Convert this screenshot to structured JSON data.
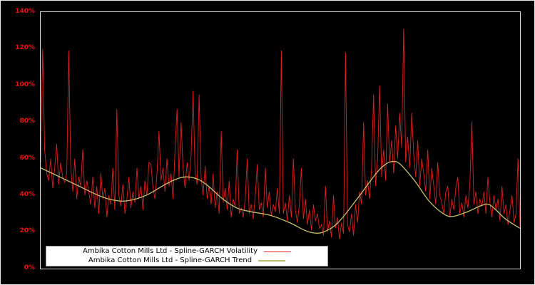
{
  "figure": {
    "background": "#000000",
    "plot_border_color": "#dcdcdc"
  },
  "colors": {
    "volatility": "#e01f1f",
    "trend": "#bdb76b",
    "axis_label": "#ee1111",
    "legend_bg": "#ffffff",
    "legend_text": "#000000"
  },
  "axis": {
    "y_ticks": [
      "0%",
      "20%",
      "40%",
      "60%",
      "80%",
      "100%",
      "120%",
      "140%"
    ],
    "y_min": 0,
    "y_max": 140,
    "y_unit": "%"
  },
  "legend": {
    "items": [
      {
        "label": "Ambika Cotton Mills Ltd - Spline-GARCH Volatility",
        "color": "#e01f1f"
      },
      {
        "label": "Ambika Cotton Mills Ltd - Spline-GARCH Trend",
        "color": "#bdb76b"
      }
    ]
  },
  "chart_data": {
    "type": "line",
    "title": "",
    "xlabel": "",
    "ylabel": "",
    "ylim": [
      0,
      140
    ],
    "y_unit": "percent",
    "grid": false,
    "legend_position": "bottom-left",
    "series": [
      {
        "name": "Ambika Cotton Mills Ltd - Spline-GARCH Volatility",
        "color": "#e01f1f",
        "style": "noisy-line",
        "values": [
          58,
          120,
          65,
          52,
          48,
          60,
          44,
          55,
          68,
          46,
          58,
          50,
          47,
          52,
          119,
          55,
          42,
          60,
          38,
          50,
          45,
          65,
          40,
          48,
          42,
          35,
          50,
          33,
          45,
          30,
          52,
          38,
          44,
          28,
          40,
          35,
          55,
          32,
          87,
          40,
          34,
          46,
          30,
          38,
          50,
          33,
          42,
          36,
          55,
          38,
          45,
          32,
          48,
          40,
          58,
          57,
          44,
          38,
          52,
          75,
          48,
          55,
          42,
          60,
          45,
          52,
          38,
          65,
          87,
          50,
          80,
          55,
          44,
          58,
          48,
          62,
          97,
          52,
          46,
          95,
          50,
          40,
          56,
          38,
          45,
          35,
          52,
          33,
          42,
          30,
          75,
          36,
          44,
          32,
          48,
          28,
          38,
          34,
          65,
          30,
          33,
          28,
          38,
          60,
          30,
          35,
          27,
          40,
          57,
          32,
          36,
          28,
          55,
          33,
          42,
          29,
          35,
          31,
          44,
          30,
          119,
          30,
          36,
          26,
          40,
          28,
          60,
          32,
          25,
          35,
          55,
          27,
          38,
          24,
          32,
          21,
          35,
          26,
          30,
          22,
          24,
          18,
          45,
          20,
          26,
          17,
          40,
          22,
          28,
          16,
          25,
          19,
          118,
          24,
          20,
          30,
          18,
          35,
          25,
          42,
          35,
          80,
          40,
          48,
          38,
          55,
          95,
          45,
          60,
          100,
          50,
          65,
          48,
          90,
          58,
          70,
          52,
          78,
          60,
          85,
          66,
          131,
          58,
          72,
          55,
          85,
          62,
          50,
          70,
          45,
          60,
          52,
          42,
          65,
          38,
          55,
          45,
          35,
          58,
          40,
          36,
          30,
          42,
          45,
          28,
          38,
          32,
          44,
          50,
          30,
          36,
          28,
          40,
          33,
          46,
          80,
          35,
          42,
          30,
          38,
          34,
          42,
          30,
          50,
          36,
          28,
          40,
          32,
          38,
          26,
          45,
          30,
          35,
          24,
          32,
          40,
          25,
          30,
          60,
          23
        ]
      },
      {
        "name": "Ambika Cotton Mills Ltd - Spline-GARCH Trend",
        "color": "#bdb76b",
        "style": "smooth-line",
        "x_frac": [
          0.0,
          0.04,
          0.08,
          0.12,
          0.15,
          0.18,
          0.22,
          0.26,
          0.29,
          0.31,
          0.33,
          0.35,
          0.38,
          0.41,
          0.44,
          0.48,
          0.52,
          0.55,
          0.57,
          0.59,
          0.62,
          0.66,
          0.7,
          0.72,
          0.735,
          0.75,
          0.78,
          0.81,
          0.84,
          0.86,
          0.89,
          0.92,
          0.935,
          0.95,
          0.97,
          1.0
        ],
        "values": [
          55,
          50,
          45,
          40,
          37.5,
          37,
          40,
          46,
          49.5,
          50,
          48.5,
          45,
          38,
          33,
          31,
          29,
          25,
          21,
          19.5,
          20,
          25,
          38,
          52,
          57,
          58.5,
          57,
          48,
          37,
          30,
          28.5,
          31,
          34.5,
          35,
          32,
          27,
          22
        ]
      }
    ]
  }
}
